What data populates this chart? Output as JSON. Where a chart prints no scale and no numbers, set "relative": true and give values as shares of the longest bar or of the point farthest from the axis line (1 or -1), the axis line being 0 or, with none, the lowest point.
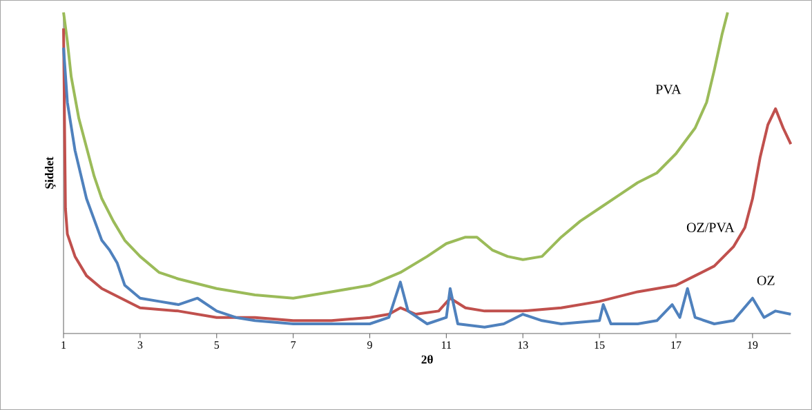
{
  "chart_data": {
    "type": "line",
    "relative": true,
    "xlabel": "2θ",
    "ylabel": "Şiddet",
    "xlim": [
      1,
      20
    ],
    "xticks": [
      1,
      3,
      5,
      7,
      9,
      11,
      13,
      15,
      17,
      19
    ],
    "legend": false,
    "grid": false,
    "marker": "none",
    "line_style": "solid",
    "series": [
      {
        "name": "PVA",
        "color": "#9bbb59",
        "x": [
          1.0,
          1.1,
          1.2,
          1.4,
          1.6,
          1.8,
          2.0,
          2.3,
          2.6,
          3.0,
          3.5,
          4.0,
          5.0,
          6.0,
          7.0,
          8.0,
          9.0,
          9.8,
          10.5,
          11.0,
          11.5,
          11.8,
          12.2,
          12.6,
          13.0,
          13.5,
          14.0,
          14.5,
          15.0,
          15.5,
          16.0,
          16.5,
          17.0,
          17.5,
          17.8,
          18.0,
          18.2,
          18.35
        ],
        "values": [
          1.0,
          0.91,
          0.8,
          0.67,
          0.58,
          0.49,
          0.42,
          0.35,
          0.29,
          0.24,
          0.19,
          0.17,
          0.14,
          0.12,
          0.11,
          0.13,
          0.15,
          0.19,
          0.24,
          0.28,
          0.3,
          0.3,
          0.26,
          0.24,
          0.23,
          0.24,
          0.3,
          0.35,
          0.39,
          0.43,
          0.47,
          0.5,
          0.56,
          0.64,
          0.72,
          0.82,
          0.93,
          1.0
        ]
      },
      {
        "name": "OZ/PVA",
        "color": "#c0504d",
        "x": [
          1.0,
          1.05,
          1.1,
          1.3,
          1.6,
          2.0,
          2.5,
          3.0,
          4.0,
          5.0,
          6.0,
          7.0,
          8.0,
          9.0,
          9.5,
          9.8,
          10.2,
          10.8,
          11.1,
          11.5,
          12.0,
          13.0,
          14.0,
          15.0,
          16.0,
          17.0,
          17.5,
          18.0,
          18.5,
          18.8,
          19.0,
          19.2,
          19.4,
          19.6,
          19.8,
          20.0
        ],
        "values": [
          0.95,
          0.39,
          0.31,
          0.24,
          0.18,
          0.14,
          0.11,
          0.08,
          0.07,
          0.05,
          0.05,
          0.04,
          0.04,
          0.05,
          0.06,
          0.08,
          0.06,
          0.07,
          0.11,
          0.08,
          0.07,
          0.07,
          0.08,
          0.1,
          0.13,
          0.15,
          0.18,
          0.21,
          0.27,
          0.33,
          0.42,
          0.55,
          0.65,
          0.7,
          0.64,
          0.59
        ]
      },
      {
        "name": "OZ",
        "color": "#4f81bd",
        "x": [
          1.0,
          1.1,
          1.3,
          1.6,
          2.0,
          2.2,
          2.4,
          2.6,
          3.0,
          3.5,
          4.0,
          4.5,
          5.0,
          5.5,
          6.0,
          7.0,
          8.0,
          9.0,
          9.5,
          9.8,
          10.0,
          10.5,
          11.0,
          11.1,
          11.3,
          12.0,
          12.5,
          13.0,
          13.5,
          14.0,
          15.0,
          15.1,
          15.3,
          16.0,
          16.5,
          16.9,
          17.1,
          17.3,
          17.5,
          18.0,
          18.5,
          19.0,
          19.3,
          19.6,
          20.0
        ],
        "values": [
          0.89,
          0.72,
          0.57,
          0.42,
          0.29,
          0.26,
          0.22,
          0.15,
          0.11,
          0.1,
          0.09,
          0.11,
          0.07,
          0.05,
          0.04,
          0.03,
          0.03,
          0.03,
          0.05,
          0.16,
          0.07,
          0.03,
          0.05,
          0.14,
          0.03,
          0.02,
          0.03,
          0.06,
          0.04,
          0.03,
          0.04,
          0.09,
          0.03,
          0.03,
          0.04,
          0.09,
          0.05,
          0.14,
          0.05,
          0.03,
          0.04,
          0.11,
          0.05,
          0.07,
          0.06
        ]
      }
    ]
  }
}
